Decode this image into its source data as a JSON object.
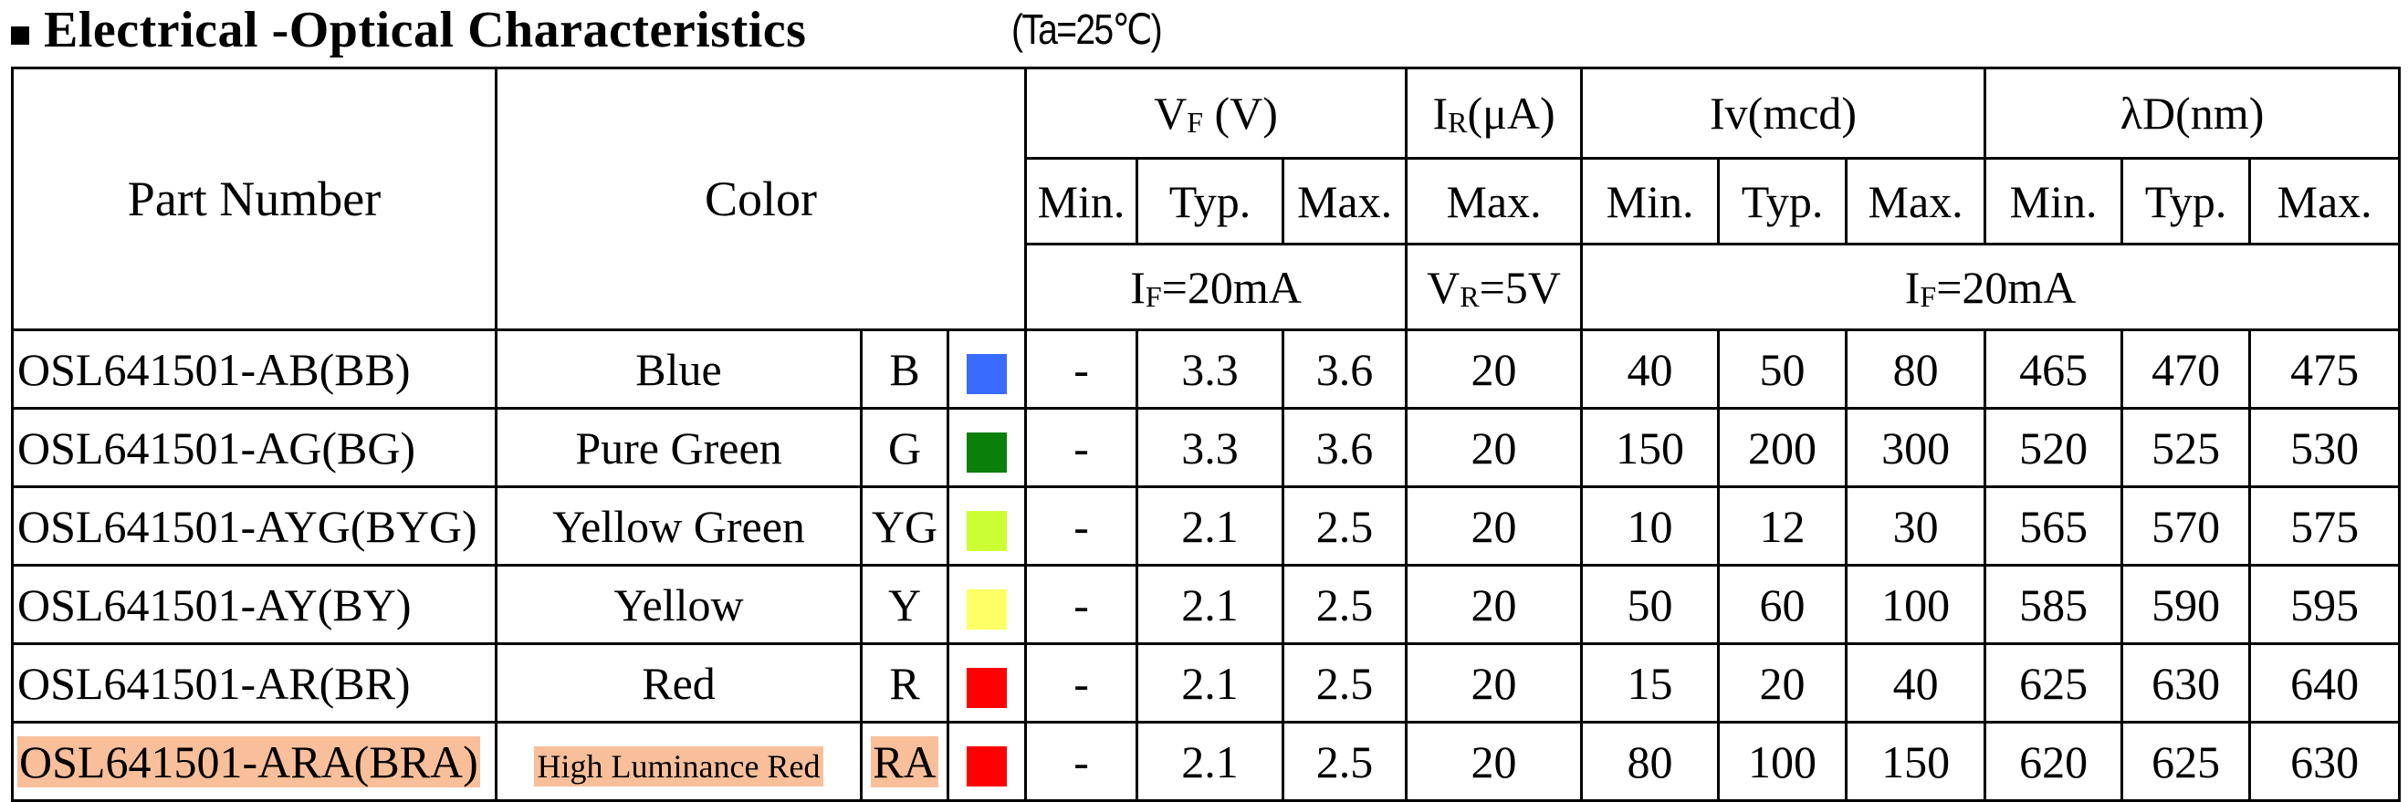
{
  "heading": {
    "title": "Electrical -Optical Characteristics",
    "condition": "(Ta=25℃)"
  },
  "table": {
    "headers": {
      "part_number": "Part Number",
      "color": "Color",
      "vf_symbol": "V",
      "vf_sub": "F",
      "vf_unit": " (V)",
      "ir_symbol": "I",
      "ir_sub": "R",
      "ir_unit": "(μA)",
      "iv": "Iv(mcd)",
      "wl": "λD(nm)",
      "min": "Min.",
      "typ": "Typ.",
      "max": "Max.",
      "if_symbol": "I",
      "if_sub": "F",
      "if_value": "=20mA",
      "vr_symbol": "V",
      "vr_sub": "R",
      "vr_value": "=5V"
    },
    "rows": [
      {
        "part": "OSL641501-AB(BB)",
        "color": "Blue",
        "code": "B",
        "swatch": "#3a6bff",
        "vf_min": "-",
        "vf_typ": "3.3",
        "vf_max": "3.6",
        "ir_max": "20",
        "iv_min": "40",
        "iv_typ": "50",
        "iv_max": "80",
        "wl_min": "465",
        "wl_typ": "470",
        "wl_max": "475"
      },
      {
        "part": "OSL641501-AG(BG)",
        "color": "Pure Green",
        "code": "G",
        "swatch": "#0a7f0a",
        "vf_min": "-",
        "vf_typ": "3.3",
        "vf_max": "3.6",
        "ir_max": "20",
        "iv_min": "150",
        "iv_typ": "200",
        "iv_max": "300",
        "wl_min": "520",
        "wl_typ": "525",
        "wl_max": "530"
      },
      {
        "part": "OSL641501-AYG(BYG)",
        "color": "Yellow Green",
        "code": "YG",
        "swatch": "#ccff33",
        "vf_min": "-",
        "vf_typ": "2.1",
        "vf_max": "2.5",
        "ir_max": "20",
        "iv_min": "10",
        "iv_typ": "12",
        "iv_max": "30",
        "wl_min": "565",
        "wl_typ": "570",
        "wl_max": "575"
      },
      {
        "part": "OSL641501-AY(BY)",
        "color": "Yellow",
        "code": "Y",
        "swatch": "#ffff66",
        "vf_min": "-",
        "vf_typ": "2.1",
        "vf_max": "2.5",
        "ir_max": "20",
        "iv_min": "50",
        "iv_typ": "60",
        "iv_max": "100",
        "wl_min": "585",
        "wl_typ": "590",
        "wl_max": "595"
      },
      {
        "part": "OSL641501-AR(BR)",
        "color": "Red",
        "code": "R",
        "swatch": "#ff0000",
        "vf_min": "-",
        "vf_typ": "2.1",
        "vf_max": "2.5",
        "ir_max": "20",
        "iv_min": "15",
        "iv_typ": "20",
        "iv_max": "40",
        "wl_min": "625",
        "wl_typ": "630",
        "wl_max": "640"
      },
      {
        "part": "OSL641501-ARA(BRA)",
        "color": "High Luminance Red",
        "code": "RA",
        "swatch": "#ff0000",
        "vf_min": "-",
        "vf_typ": "2.1",
        "vf_max": "2.5",
        "ir_max": "20",
        "iv_min": "80",
        "iv_typ": "100",
        "iv_max": "150",
        "wl_min": "620",
        "wl_typ": "625",
        "wl_max": "630",
        "highlight": "#f9bf9a"
      }
    ]
  }
}
